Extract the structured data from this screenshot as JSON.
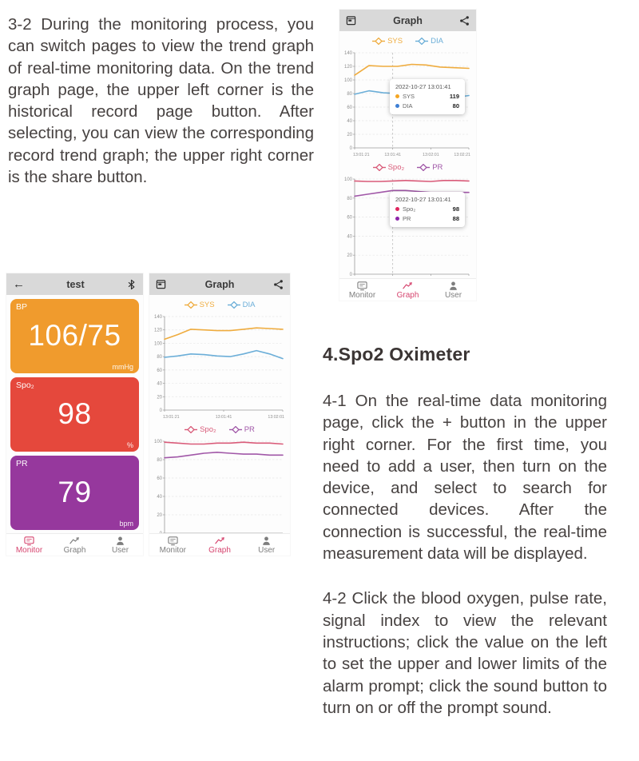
{
  "document": {
    "para_3_2": "3-2 During the monitoring process, you can switch pages to view the trend graph of real-time monitoring data. On the trend graph page, the upper left corner is the historical record page button. After selecting, you can view the corresponding record trend graph; the upper right corner is the share button.",
    "spo2_heading": "4.Spo2 Oximeter",
    "para_4_1": "4-1 On the real-time data monitoring page, click the + button in the upper right corner. For the first time, you need to add a user, then turn on the device, and select to search for connected devices. After the connection is successful, the real-time measurement data will be displayed.",
    "para_4_2": "4-2 Click the blood oxygen, pulse rate, signal index to view the relevant instructions; click the value on the left to set the upper and lower limits of the alarm prompt; click the sound button to turn on or off the prompt sound."
  },
  "monitor_phone": {
    "header": {
      "title": "test",
      "back_icon": "arrow-left",
      "right_icon": "bluetooth"
    },
    "cards": [
      {
        "label": "BP",
        "value": "106/75",
        "unit": "mmHg",
        "color": "#F09B2D"
      },
      {
        "label": "Spo₂",
        "value": "98",
        "unit": "%",
        "color": "#E5483C"
      },
      {
        "label": "PR",
        "value": "79",
        "unit": "bpm",
        "color": "#96389D"
      }
    ],
    "nav": [
      {
        "label": "Monitor",
        "active": true
      },
      {
        "label": "Graph",
        "active": false
      },
      {
        "label": "User",
        "active": false
      }
    ]
  },
  "graph_phone_small": {
    "header": {
      "title": "Graph",
      "left_icon": "calendar-record",
      "right_icon": "share"
    },
    "nav": [
      {
        "label": "Monitor",
        "active": false
      },
      {
        "label": "Graph",
        "active": true
      },
      {
        "label": "User",
        "active": false
      }
    ]
  },
  "graph_phone_large": {
    "header": {
      "title": "Graph",
      "left_icon": "calendar-record",
      "right_icon": "share"
    },
    "nav": [
      {
        "label": "Monitor",
        "active": false
      },
      {
        "label": "Graph",
        "active": true
      },
      {
        "label": "User",
        "active": false
      }
    ]
  },
  "colors": {
    "accent_pink": "#D6456F",
    "header_gray": "#D9D9D9",
    "sys_line": "#EFAC3F",
    "dia_line": "#6BAED8",
    "spo2_line": "#D95B79",
    "pr_line": "#A158A8"
  },
  "chart_data": [
    {
      "id": "bp-trend-large",
      "type": "line",
      "x_labels": [
        "13:01:21",
        "13:01:41",
        "13:02:01",
        "13:02:21"
      ],
      "ylim": [
        0,
        140
      ],
      "ytick_step": 20,
      "grid": true,
      "legend_position": "top",
      "vline_frac": 0.3333,
      "series": [
        {
          "name": "SYS",
          "color": "#EFAC3F",
          "values": [
            107,
            121,
            120,
            120,
            123,
            122,
            119,
            118,
            117
          ]
        },
        {
          "name": "DIA",
          "color": "#6BAED8",
          "values": [
            79,
            84,
            81,
            80,
            82,
            78,
            74,
            74,
            77
          ]
        }
      ],
      "tooltip": {
        "date": "2022-10-27 13:01:41",
        "rows": [
          {
            "label": "SYS",
            "value": "119",
            "color": "#F5A623"
          },
          {
            "label": "DIA",
            "value": "80",
            "color": "#3E7FD4"
          }
        ]
      }
    },
    {
      "id": "spo2-trend-large",
      "type": "line",
      "x_labels": [
        "13:01:21",
        "13:01:41",
        "13:02:01",
        "13:02:21"
      ],
      "ylim": [
        0,
        100
      ],
      "ytick_step": 20,
      "grid": true,
      "legend_position": "top",
      "vline_frac": 0.3333,
      "series": [
        {
          "name": "Spo₂",
          "color": "#D95B79",
          "values": [
            98,
            97.5,
            97.5,
            98,
            98.5,
            98,
            97.5,
            98.5,
            98.5,
            98
          ]
        },
        {
          "name": "PR",
          "color": "#A158A8",
          "values": [
            82,
            84,
            86,
            88,
            88,
            87,
            86,
            86,
            86,
            86
          ]
        }
      ],
      "tooltip": {
        "date": "2022-10-27 13:01:41",
        "rows": [
          {
            "label": "Spo₂",
            "value": "98",
            "color": "#E0255E"
          },
          {
            "label": "PR",
            "value": "88",
            "color": "#8E24AA"
          }
        ]
      }
    },
    {
      "id": "bp-trend-small",
      "type": "line",
      "x_labels": [
        "13:01:21",
        "13:01:41",
        "13:02:01"
      ],
      "ylim": [
        0,
        140
      ],
      "ytick_step": 20,
      "grid": true,
      "legend_position": "top",
      "series": [
        {
          "name": "SYS",
          "color": "#EFAC3F",
          "values": [
            106,
            113,
            121,
            120,
            119,
            119,
            121,
            123,
            122,
            121
          ]
        },
        {
          "name": "DIA",
          "color": "#6BAED8",
          "values": [
            79,
            81,
            84,
            83,
            81,
            80,
            84,
            89,
            84,
            77
          ]
        }
      ]
    },
    {
      "id": "spo2-trend-small",
      "type": "line",
      "x_labels": [
        "13:01:21",
        "13:01:41",
        "13:02:01"
      ],
      "ylim": [
        0,
        100
      ],
      "ytick_step": 20,
      "grid": true,
      "legend_position": "top",
      "series": [
        {
          "name": "Spo₂",
          "color": "#D95B79",
          "values": [
            99,
            98,
            97,
            97,
            98,
            98,
            99,
            98,
            98,
            97
          ]
        },
        {
          "name": "PR",
          "color": "#A158A8",
          "values": [
            82,
            83,
            85,
            87,
            88,
            87,
            86,
            86,
            85,
            85
          ]
        }
      ]
    }
  ]
}
